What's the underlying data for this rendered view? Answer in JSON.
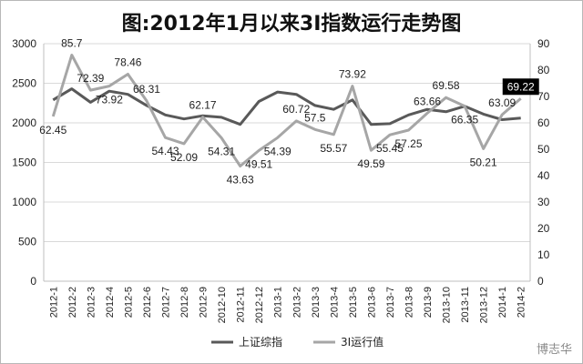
{
  "watermark": "博志华",
  "chart_data": {
    "type": "line",
    "title": "图:2012年1月以来3I指数运行走势图",
    "categories": [
      "2012-1",
      "2012-2",
      "2012-3",
      "2012-4",
      "2012-5",
      "2012-6",
      "2012-7",
      "2012-8",
      "2012-9",
      "2012-10",
      "2012-11",
      "2012-12",
      "2013-1",
      "2013-2",
      "2013-3",
      "2013-4",
      "2013-5",
      "2013-6",
      "2013-7",
      "2013-8",
      "2013-9",
      "2013-10",
      "2013-11",
      "2013-12",
      "2014-1",
      "2014-2"
    ],
    "y_left": {
      "min": 0,
      "max": 3000,
      "ticks": [
        0,
        500,
        1000,
        1500,
        2000,
        2500,
        3000
      ]
    },
    "y_right": {
      "min": 0,
      "max": 90,
      "ticks": [
        0,
        10,
        20,
        30,
        40,
        50,
        60,
        70,
        80,
        90
      ]
    },
    "grid": true,
    "legend_position": "bottom",
    "series": [
      {
        "name": "上证综指",
        "axis": "left",
        "color": "#595959",
        "values": [
          2290,
          2430,
          2260,
          2400,
          2360,
          2220,
          2100,
          2050,
          2090,
          2070,
          1980,
          2270,
          2390,
          2360,
          2220,
          2170,
          2290,
          1980,
          1990,
          2100,
          2170,
          2140,
          2210,
          2110,
          2040,
          2060
        ]
      },
      {
        "name": "3I运行值",
        "axis": "right",
        "color": "#a6a6a6",
        "values": [
          62.45,
          85.7,
          72.39,
          73.92,
          78.46,
          68.31,
          54.43,
          52.09,
          62.17,
          54.31,
          43.63,
          49.51,
          54.39,
          60.72,
          57.5,
          55.57,
          73.92,
          49.59,
          55.45,
          57.25,
          63.66,
          69.58,
          66.35,
          50.21,
          63.09,
          69.22
        ],
        "labels": [
          "62.45",
          "85.7",
          "72.39",
          "73.92",
          "78.46",
          "68.31",
          "54.43",
          "52.09",
          "62.17",
          "54.31",
          "43.63",
          "49.51",
          "54.39",
          "60.72",
          "57.5",
          "55.57",
          "73.92",
          "49.59",
          "55.45",
          "57.25",
          "63.66",
          "69.58",
          "66.35",
          "50.21",
          "63.09",
          "69.22"
        ]
      }
    ]
  }
}
